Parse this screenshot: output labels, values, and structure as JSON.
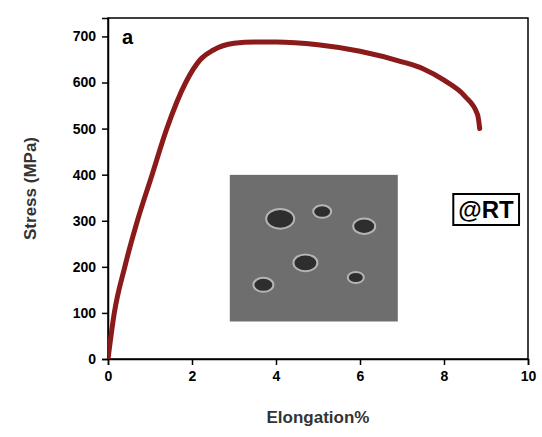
{
  "chart_data": {
    "type": "line",
    "panel_label": "a",
    "annotations": [
      "@RT"
    ],
    "x_label": "Elongation%",
    "y_label": "Stress (MPa)",
    "x": [
      0,
      0.15,
      0.4,
      0.7,
      1.05,
      1.4,
      1.85,
      2.2,
      2.5,
      3,
      3.5,
      4,
      5,
      6,
      7,
      7.5,
      8,
      8.5,
      8.8,
      8.85
    ],
    "values": [
      0,
      100,
      200,
      300,
      400,
      500,
      600,
      650,
      670,
      685,
      688,
      688,
      682,
      668,
      645,
      630,
      605,
      570,
      530,
      500
    ],
    "color": "#8b1a1a",
    "line_style": "solid",
    "grid": false,
    "xlim": [
      0,
      10
    ],
    "xticks": [
      0,
      2,
      4,
      6,
      8,
      10
    ],
    "ylim": [
      0,
      740
    ],
    "yticks": [
      0,
      100,
      200,
      300,
      400,
      500,
      600,
      700
    ]
  }
}
